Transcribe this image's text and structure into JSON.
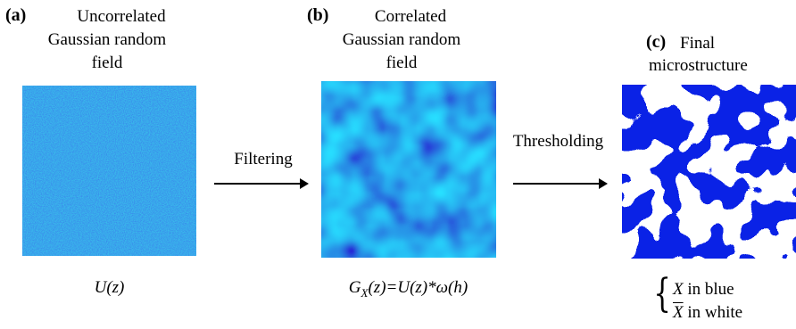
{
  "panels": [
    {
      "label": "(a)",
      "title_lines": [
        "Uncorrelated",
        "Gaussian random",
        "field"
      ],
      "formula": "U(z)"
    },
    {
      "label": "(b)",
      "title_lines": [
        "Correlated",
        "Gaussian random",
        "field"
      ],
      "formula_parts": {
        "g": "G",
        "sub": "X",
        "rest": "(z)=U(z)*ω(h)"
      }
    },
    {
      "label": "(c)",
      "title_lines": [
        "Final",
        "microstructure"
      ]
    }
  ],
  "arrows": {
    "filtering": "Filtering",
    "thresholding": "Thresholding"
  },
  "legend": {
    "x": "X",
    "x_text": " in blue",
    "xbar": "X",
    "xbar_text": " in white"
  },
  "colors": {
    "blue": "#0a22e6",
    "field_light": "#4ad6ff",
    "field_dark": "#000a40"
  }
}
